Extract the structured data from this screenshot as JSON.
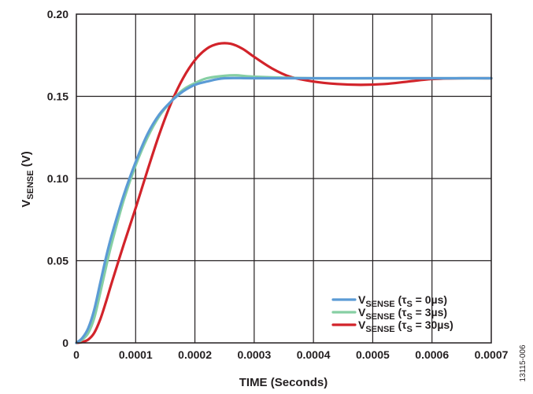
{
  "figure_id": "13115-006",
  "chart_data": {
    "type": "line",
    "xlabel": "TIME (Seconds)",
    "ylabel": {
      "main": "V",
      "sub": "SENSE",
      "suffix": " (V)"
    },
    "xlim": [
      0,
      0.0007
    ],
    "ylim": [
      0,
      0.2
    ],
    "x_ticks": [
      0,
      0.0001,
      0.0002,
      0.0003,
      0.0004,
      0.0005,
      0.0006,
      0.0007
    ],
    "x_tick_labels": [
      "0",
      "0.0001",
      "0.0002",
      "0.0003",
      "0.0004",
      "0.0005",
      "0.0006",
      "0.0007"
    ],
    "y_ticks": [
      0,
      0.05,
      0.1,
      0.15,
      0.2
    ],
    "y_tick_labels": [
      "0",
      "0.05",
      "0.10",
      "0.15",
      "0.20"
    ],
    "grid": true,
    "legend_position": "bottom-right",
    "series": [
      {
        "name": "VSENSE (τS = 0µs)",
        "legend": {
          "main": "V",
          "sub": "SENSE",
          "mid": " (τ",
          "sub2": "S",
          "tail": " = 0µs)"
        },
        "color": "#5b9bd5",
        "x": [
          0,
          1e-05,
          2e-05,
          3e-05,
          4e-05,
          5e-05,
          6e-05,
          8e-05,
          0.0001,
          0.00012,
          0.00014,
          0.00016,
          0.00018,
          0.0002,
          0.00022,
          0.00025,
          0.0003,
          0.0004,
          0.0005,
          0.0006,
          0.0007
        ],
        "y": [
          0,
          0.003,
          0.009,
          0.02,
          0.036,
          0.052,
          0.066,
          0.09,
          0.11,
          0.127,
          0.139,
          0.147,
          0.153,
          0.157,
          0.159,
          0.161,
          0.161,
          0.161,
          0.161,
          0.161,
          0.161
        ]
      },
      {
        "name": "VSENSE (τS = 3µs)",
        "legend": {
          "main": "V",
          "sub": "SENSE",
          "mid": " (τ",
          "sub2": "S",
          "tail": " = 3µs)"
        },
        "color": "#86cfa3",
        "x": [
          0,
          1e-05,
          2e-05,
          3e-05,
          4e-05,
          5e-05,
          6e-05,
          8e-05,
          0.0001,
          0.00012,
          0.00014,
          0.00016,
          0.00018,
          0.0002,
          0.00022,
          0.00025,
          0.00027,
          0.0003,
          0.0004,
          0.0005,
          0.0006,
          0.0007
        ],
        "y": [
          0,
          0.002,
          0.006,
          0.015,
          0.03,
          0.046,
          0.061,
          0.087,
          0.108,
          0.125,
          0.138,
          0.147,
          0.154,
          0.158,
          0.161,
          0.1625,
          0.1628,
          0.162,
          0.161,
          0.161,
          0.161,
          0.161
        ]
      },
      {
        "name": "VSENSE (τS = 30µs)",
        "legend": {
          "main": "V",
          "sub": "SENSE",
          "mid": " (τ",
          "sub2": "S",
          "tail": " = 30µs)"
        },
        "color": "#d2232a",
        "x": [
          0,
          1e-05,
          2e-05,
          3e-05,
          4e-05,
          5e-05,
          6e-05,
          8e-05,
          0.0001,
          0.00012,
          0.00014,
          0.00016,
          0.00018,
          0.0002,
          0.00022,
          0.00024,
          0.00026,
          0.00028,
          0.0003,
          0.00033,
          0.00036,
          0.0004,
          0.00044,
          0.00048,
          0.00052,
          0.00056,
          0.0006,
          0.00065,
          0.0007
        ],
        "y": [
          0,
          0.0005,
          0.002,
          0.006,
          0.014,
          0.025,
          0.037,
          0.06,
          0.082,
          0.105,
          0.127,
          0.146,
          0.161,
          0.172,
          0.179,
          0.182,
          0.182,
          0.179,
          0.174,
          0.167,
          0.162,
          0.159,
          0.1575,
          0.157,
          0.1575,
          0.159,
          0.1605,
          0.161,
          0.161
        ]
      }
    ]
  }
}
